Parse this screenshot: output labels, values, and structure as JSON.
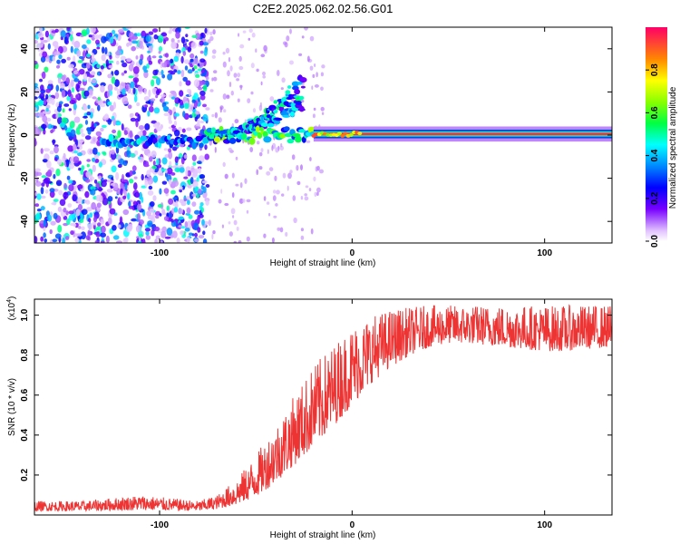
{
  "title": "C2E2.2025.062.02.56.G01",
  "chart_data": [
    {
      "type": "heatmap",
      "panel": "spectrogram",
      "xlabel": "Height of straight line (km)",
      "ylabel": "Frequency (Hz)",
      "xlim": [
        -165,
        135
      ],
      "ylim": [
        -50,
        50
      ],
      "xticks": [
        -100,
        0,
        100
      ],
      "xtick_labels": [
        "-100",
        "0",
        "100"
      ],
      "yticks": [
        -40,
        -20,
        0,
        20,
        40
      ],
      "ytick_labels": [
        "-40",
        "-20",
        "0",
        "20",
        "40"
      ],
      "colorbar": {
        "label": "Normalized spectral amplitude",
        "range": [
          0,
          1
        ],
        "ticks": [
          0.0,
          0.2,
          0.4,
          0.6,
          0.8
        ],
        "tick_labels": [
          "0.0",
          "0.2",
          "0.4",
          "0.6",
          "0.8"
        ]
      },
      "features": [
        {
          "name": "scattered_noise",
          "x_range": [
            -165,
            -75
          ],
          "freq_range": [
            -50,
            50
          ],
          "amplitude": 0.25
        },
        {
          "name": "weak_band",
          "x_range": [
            -130,
            -75
          ],
          "freq": -3,
          "amplitude": 0.45
        },
        {
          "name": "rising_branch",
          "x_range": [
            -75,
            -25
          ],
          "freq_start": 0,
          "freq_end": 30,
          "amplitude": 0.4
        },
        {
          "name": "converging_band",
          "x_range": [
            -75,
            -20
          ],
          "freq": 0,
          "amplitude": 0.5
        },
        {
          "name": "strong_band",
          "x_range": [
            -20,
            135
          ],
          "freq": 0.5,
          "amplitude": 0.95
        }
      ]
    },
    {
      "type": "line",
      "panel": "snr",
      "xlabel": "Height of straight line (km)",
      "ylabel": "SNR (10 * v/v)",
      "y_multiplier": "(x10",
      "y_multiplier_exp": "4",
      "y_multiplier_close": ")",
      "xlim": [
        -165,
        135
      ],
      "ylim": [
        0,
        1.08
      ],
      "xticks": [
        -100,
        0,
        100
      ],
      "xtick_labels": [
        "-100",
        "0",
        "100"
      ],
      "yticks": [
        0.2,
        0.4,
        0.6,
        0.8,
        1.0
      ],
      "ytick_labels": [
        "0.2",
        "0.4",
        "0.6",
        "0.8",
        "1.0"
      ],
      "series": [
        {
          "name": "SNR",
          "color": "#ee3333",
          "x": [
            -165,
            -140,
            -110,
            -80,
            -70,
            -60,
            -50,
            -40,
            -30,
            -20,
            -10,
            0,
            10,
            20,
            30,
            40,
            50,
            60,
            70,
            80,
            90,
            100,
            110,
            120,
            135
          ],
          "baseline": [
            0.02,
            0.02,
            0.025,
            0.02,
            0.03,
            0.05,
            0.09,
            0.16,
            0.25,
            0.34,
            0.44,
            0.55,
            0.66,
            0.74,
            0.8,
            0.84,
            0.86,
            0.86,
            0.85,
            0.84,
            0.83,
            0.82,
            0.82,
            0.83,
            0.84
          ],
          "envelope": [
            0.07,
            0.07,
            0.1,
            0.07,
            0.1,
            0.18,
            0.3,
            0.45,
            0.6,
            0.75,
            0.85,
            0.95,
            1.0,
            1.03,
            1.04,
            1.05,
            1.05,
            1.05,
            1.05,
            1.05,
            1.05,
            1.05,
            1.05,
            1.05,
            1.05
          ]
        }
      ]
    }
  ],
  "colors": {
    "snr_line": "#ee3333",
    "frame": "#000000",
    "background": "#ffffff"
  }
}
